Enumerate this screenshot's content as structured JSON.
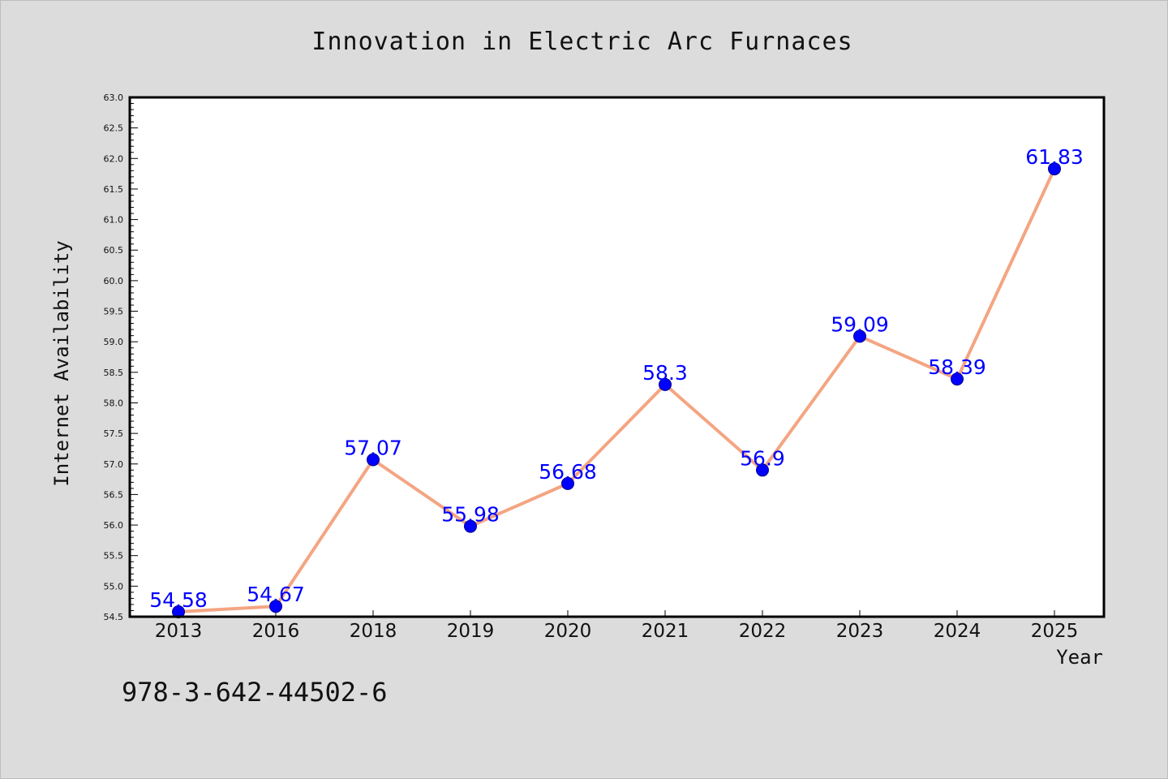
{
  "isbn": "978-3-642-44502-6",
  "colors": {
    "background": "#dcdcdc",
    "plot_background": "#ffffff",
    "line": "#f4a582",
    "marker": "#0000ff",
    "data_label": "#0000ff"
  },
  "chart_data": {
    "type": "line",
    "title": "Innovation in Electric Arc Furnaces",
    "xlabel": "Year",
    "ylabel": "Internet Availability",
    "categories": [
      "2013",
      "2016",
      "2018",
      "2019",
      "2020",
      "2021",
      "2022",
      "2023",
      "2024",
      "2025"
    ],
    "series": [
      {
        "values": [
          54.58,
          54.67,
          57.07,
          55.98,
          56.68,
          58.3,
          56.9,
          59.09,
          58.39,
          61.83
        ],
        "data_labels": [
          "54.58",
          "54.67",
          "57.07",
          "55.98",
          "56.68",
          "58.3",
          "56.9",
          "59.09",
          "58.39",
          "61.83"
        ]
      }
    ],
    "ylim": [
      54.5,
      63.0
    ],
    "yticks": [
      "54.5",
      "55.0",
      "55.5",
      "56.0",
      "56.5",
      "57.0",
      "57.5",
      "58.0",
      "58.5",
      "59.0",
      "59.5",
      "60.0",
      "60.5",
      "61.0",
      "61.5",
      "62.0",
      "62.5",
      "63.0"
    ],
    "grid": false,
    "legend": "none"
  }
}
